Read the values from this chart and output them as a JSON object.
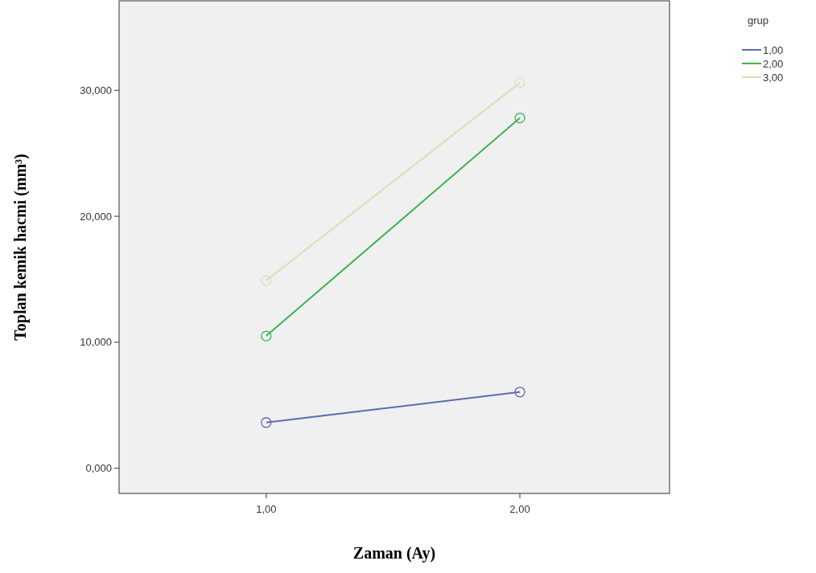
{
  "chart_data": {
    "type": "line",
    "xlabel": "Zaman (Ay)",
    "ylabel": "Toplan  kemik hacmi (mm³)",
    "legend_title": "grup",
    "x": [
      1,
      2
    ],
    "series": [
      {
        "name": "1,00",
        "color": "#5b6bb0",
        "values": [
          3.63,
          6.05
        ]
      },
      {
        "name": "2,00",
        "color": "#3db356",
        "values": [
          10.5,
          27.8
        ]
      },
      {
        "name": "3,00",
        "color": "#dedcb4",
        "values": [
          14.9,
          30.6
        ]
      }
    ],
    "xlim": [
      0.42,
      2.59
    ],
    "xticks": [
      {
        "value": 1,
        "label": "1,00"
      },
      {
        "value": 2,
        "label": "2,00"
      }
    ],
    "ylim": [
      -2,
      37.1
    ],
    "yticks": [
      {
        "value": 0,
        "label": "0,000"
      },
      {
        "value": 10,
        "label": "10,000"
      },
      {
        "value": 20,
        "label": "20,000"
      },
      {
        "value": 30,
        "label": "30,000"
      }
    ],
    "marker": "circle",
    "legend": "top right",
    "grid": false
  }
}
